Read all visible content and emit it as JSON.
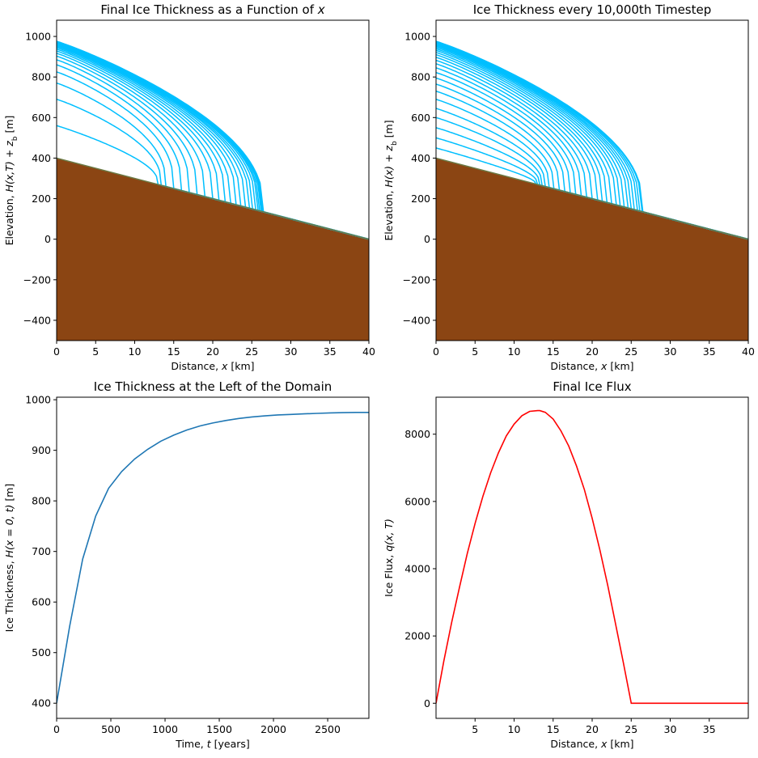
{
  "chart_data": [
    {
      "type": "line",
      "title": "Final Ice Thickness as a Function of x",
      "title_parts": [
        "Final Ice Thickness as a Function of ",
        "x"
      ],
      "xlabel": "Distance, x [km]",
      "xlabel_parts": [
        "Distance, ",
        "x",
        " [km]"
      ],
      "ylabel": "Elevation, H(x,T) + z_b [m]",
      "ylabel_parts": [
        "Elevation, ",
        "H(x,T) + z",
        "b",
        " [m]"
      ],
      "xlim": [
        0,
        40
      ],
      "ylim": [
        -500,
        1080
      ],
      "xticks": [
        0,
        5,
        10,
        15,
        20,
        25,
        30,
        35,
        40
      ],
      "yticks": [
        -400,
        -200,
        0,
        200,
        400,
        600,
        800,
        1000
      ],
      "bed": {
        "x": [
          0,
          40
        ],
        "z": [
          400,
          0
        ],
        "color": "#8b4513"
      },
      "ice_color": "#00bfff",
      "profiles": [
        {
          "height": 560,
          "margin": 13.0
        },
        {
          "height": 690,
          "margin": 13.4
        },
        {
          "height": 770,
          "margin": 14.0
        },
        {
          "height": 825,
          "margin": 15.0
        },
        {
          "height": 860,
          "margin": 16.0
        },
        {
          "height": 885,
          "margin": 17.0
        },
        {
          "height": 903,
          "margin": 18.0
        },
        {
          "height": 917,
          "margin": 19.0
        },
        {
          "height": 928,
          "margin": 20.0
        },
        {
          "height": 937,
          "margin": 20.8
        },
        {
          "height": 944,
          "margin": 21.6
        },
        {
          "height": 950,
          "margin": 22.3
        },
        {
          "height": 955,
          "margin": 23.0
        },
        {
          "height": 959,
          "margin": 23.6
        },
        {
          "height": 962,
          "margin": 24.2
        },
        {
          "height": 965,
          "margin": 24.7
        },
        {
          "height": 967,
          "margin": 25.1
        },
        {
          "height": 969,
          "margin": 25.5
        },
        {
          "height": 971,
          "margin": 25.8
        },
        {
          "height": 972,
          "margin": 26.0
        },
        {
          "height": 973,
          "margin": 26.2
        },
        {
          "height": 974,
          "margin": 26.3
        },
        {
          "height": 975,
          "margin": 26.4
        },
        {
          "height": 976,
          "margin": 26.5
        }
      ]
    },
    {
      "type": "line",
      "title": "Ice Thickness every 10,000th Timestep",
      "title_parts": [
        "Ice Thickness every 10,000th Timestep"
      ],
      "xlabel": "Distance, x [km]",
      "xlabel_parts": [
        "Distance, ",
        "x",
        " [km]"
      ],
      "ylabel": "Elevation, H(x) + z_b [m]",
      "ylabel_parts": [
        "Elevation, ",
        "H(x) + z",
        "b",
        " [m]"
      ],
      "xlim": [
        0,
        40
      ],
      "ylim": [
        -500,
        1080
      ],
      "xticks": [
        0,
        5,
        10,
        15,
        20,
        25,
        30,
        35,
        40
      ],
      "yticks": [
        -400,
        -200,
        0,
        200,
        400,
        600,
        800,
        1000
      ],
      "bed": {
        "x": [
          0,
          40
        ],
        "z": [
          400,
          0
        ],
        "color": "#8b4513"
      },
      "ice_color": "#00bfff",
      "profiles": [
        {
          "height": 450,
          "margin": 12.8
        },
        {
          "height": 500,
          "margin": 13.0
        },
        {
          "height": 550,
          "margin": 13.3
        },
        {
          "height": 600,
          "margin": 13.6
        },
        {
          "height": 645,
          "margin": 14.0
        },
        {
          "height": 690,
          "margin": 14.5
        },
        {
          "height": 730,
          "margin": 15.1
        },
        {
          "height": 765,
          "margin": 15.8
        },
        {
          "height": 795,
          "margin": 16.5
        },
        {
          "height": 822,
          "margin": 17.2
        },
        {
          "height": 845,
          "margin": 17.9
        },
        {
          "height": 865,
          "margin": 18.6
        },
        {
          "height": 882,
          "margin": 19.3
        },
        {
          "height": 897,
          "margin": 20.0
        },
        {
          "height": 910,
          "margin": 20.7
        },
        {
          "height": 921,
          "margin": 21.3
        },
        {
          "height": 931,
          "margin": 21.9
        },
        {
          "height": 939,
          "margin": 22.5
        },
        {
          "height": 946,
          "margin": 23.1
        },
        {
          "height": 952,
          "margin": 23.6
        },
        {
          "height": 957,
          "margin": 24.1
        },
        {
          "height": 961,
          "margin": 24.6
        },
        {
          "height": 965,
          "margin": 25.0
        },
        {
          "height": 968,
          "margin": 25.4
        },
        {
          "height": 971,
          "margin": 25.8
        },
        {
          "height": 973,
          "margin": 26.1
        },
        {
          "height": 975,
          "margin": 26.4
        },
        {
          "height": 976,
          "margin": 26.5
        }
      ]
    },
    {
      "type": "line",
      "title": "Ice Thickness at the Left of the Domain",
      "title_parts": [
        "Ice Thickness at the Left of the Domain"
      ],
      "xlabel": "Time, t [years]",
      "xlabel_parts": [
        "Time, ",
        "t",
        " [years]"
      ],
      "ylabel": "Ice Thickness, H(x = 0, t) [m]",
      "ylabel_parts": [
        "Ice Thickness, ",
        "H(x = 0, t)",
        " [m]"
      ],
      "xlim": [
        0,
        2880
      ],
      "ylim": [
        370,
        1005
      ],
      "xticks": [
        0,
        500,
        1000,
        1500,
        2000,
        2500
      ],
      "yticks": [
        400,
        500,
        600,
        700,
        800,
        900,
        1000
      ],
      "series": [
        {
          "color": "#1f77b4",
          "x": [
            0,
            120,
            240,
            360,
            480,
            600,
            720,
            840,
            960,
            1080,
            1200,
            1320,
            1440,
            1560,
            1680,
            1800,
            1920,
            2040,
            2160,
            2280,
            2400,
            2520,
            2640,
            2760,
            2880
          ],
          "y": [
            400,
            552,
            685,
            770,
            825,
            858,
            883,
            902,
            918,
            930,
            940,
            948,
            954,
            959,
            963,
            966,
            968,
            970,
            971,
            972,
            973,
            974,
            974.5,
            975,
            975
          ]
        }
      ]
    },
    {
      "type": "line",
      "title": "Final Ice Flux",
      "title_parts": [
        "Final Ice Flux"
      ],
      "xlabel": "Distance, x [km]",
      "xlabel_parts": [
        "Distance, ",
        "x",
        " [km]"
      ],
      "ylabel": "Ice Flux, q(x, T)",
      "ylabel_parts": [
        "Ice Flux, ",
        "q(x, T)"
      ],
      "xlim": [
        0,
        40
      ],
      "ylim": [
        -450,
        9100
      ],
      "xticks": [
        5,
        10,
        15,
        20,
        25,
        30,
        35
      ],
      "yticks": [
        0,
        2000,
        4000,
        6000,
        8000
      ],
      "series": [
        {
          "color": "#ff0000",
          "x": [
            0,
            1,
            2,
            3,
            4,
            5,
            6,
            7,
            8,
            9,
            10,
            11,
            12,
            13,
            13.3,
            14,
            15,
            16,
            17,
            18,
            19,
            20,
            21,
            22,
            23,
            24,
            25,
            26,
            26.5,
            27,
            28,
            30,
            32,
            34,
            36,
            38,
            40
          ],
          "y": [
            0,
            1250,
            2400,
            3450,
            4450,
            5350,
            6150,
            6850,
            7450,
            7950,
            8300,
            8550,
            8680,
            8700,
            8700,
            8650,
            8450,
            8100,
            7650,
            7050,
            6350,
            5500,
            4550,
            3500,
            2350,
            1200,
            0,
            0,
            0,
            0,
            0,
            0,
            0,
            0,
            0,
            0,
            0
          ]
        }
      ]
    }
  ]
}
